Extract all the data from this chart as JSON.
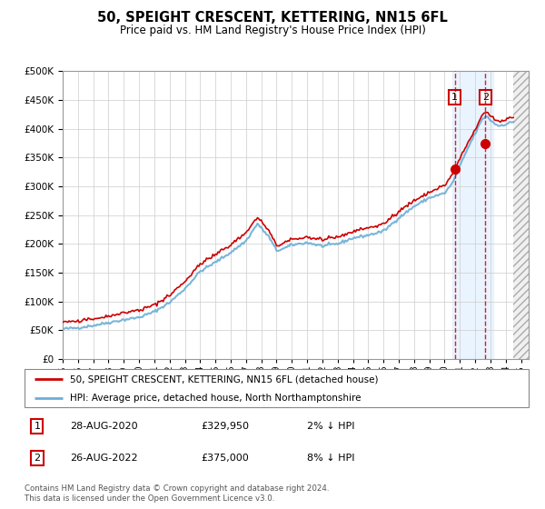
{
  "title": "50, SPEIGHT CRESCENT, KETTERING, NN15 6FL",
  "subtitle": "Price paid vs. HM Land Registry's House Price Index (HPI)",
  "hpi_color": "#6baed6",
  "price_color": "#cc0000",
  "sale1_date": 2020.66,
  "sale1_price": 329950,
  "sale1_label": "1",
  "sale1_hpi_pct": "2% ↓ HPI",
  "sale1_date_str": "28-AUG-2020",
  "sale2_date": 2022.66,
  "sale2_price": 375000,
  "sale2_label": "2",
  "sale2_hpi_pct": "8% ↓ HPI",
  "sale2_date_str": "26-AUG-2022",
  "legend_line1": "50, SPEIGHT CRESCENT, KETTERING, NN15 6FL (detached house)",
  "legend_line2": "HPI: Average price, detached house, North Northamptonshire",
  "footer": "Contains HM Land Registry data © Crown copyright and database right 2024.\nThis data is licensed under the Open Government Licence v3.0.",
  "ylim": [
    0,
    500000
  ],
  "xmin": 1995.0,
  "xmax": 2025.5,
  "hatch_start": 2024.5,
  "shade_start": 2020.5,
  "shade_end": 2023.2,
  "hpi_anchors": [
    [
      1995.0,
      52000
    ],
    [
      1996.0,
      54000
    ],
    [
      1997.0,
      58000
    ],
    [
      1998.0,
      63000
    ],
    [
      1999.0,
      68000
    ],
    [
      2000.0,
      72000
    ],
    [
      2001.0,
      82000
    ],
    [
      2002.0,
      98000
    ],
    [
      2003.0,
      122000
    ],
    [
      2004.0,
      152000
    ],
    [
      2005.0,
      168000
    ],
    [
      2006.0,
      185000
    ],
    [
      2007.0,
      205000
    ],
    [
      2007.75,
      235000
    ],
    [
      2008.5,
      212000
    ],
    [
      2009.0,
      188000
    ],
    [
      2009.5,
      192000
    ],
    [
      2010.0,
      198000
    ],
    [
      2011.0,
      202000
    ],
    [
      2012.0,
      196000
    ],
    [
      2013.0,
      200000
    ],
    [
      2014.0,
      210000
    ],
    [
      2015.0,
      215000
    ],
    [
      2016.0,
      222000
    ],
    [
      2017.0,
      245000
    ],
    [
      2018.0,
      265000
    ],
    [
      2019.0,
      280000
    ],
    [
      2020.0,
      288000
    ],
    [
      2020.5,
      305000
    ],
    [
      2021.0,
      335000
    ],
    [
      2021.5,
      365000
    ],
    [
      2022.0,
      392000
    ],
    [
      2022.5,
      418000
    ],
    [
      2022.75,
      422000
    ],
    [
      2023.0,
      415000
    ],
    [
      2023.5,
      405000
    ],
    [
      2024.0,
      408000
    ],
    [
      2024.5,
      412000
    ]
  ],
  "price_offset_anchors": [
    [
      1995.0,
      0
    ],
    [
      2000.0,
      0
    ],
    [
      2007.0,
      2000
    ],
    [
      2009.0,
      -3000
    ],
    [
      2015.0,
      1000
    ],
    [
      2019.0,
      -2000
    ],
    [
      2020.5,
      3000
    ],
    [
      2022.0,
      -5000
    ],
    [
      2024.5,
      -3000
    ]
  ],
  "noise_seed_hpi": 42,
  "noise_seed_price": 123,
  "noise_hpi": 1200,
  "noise_price": 1000
}
